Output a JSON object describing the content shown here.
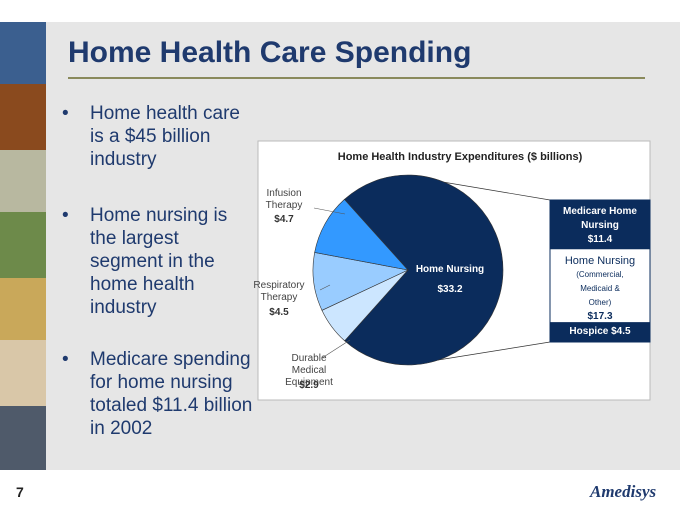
{
  "title": "Home Health Care Spending",
  "bullets": [
    "Home health care is a $45 billion industry",
    "Home nursing is the largest segment in the home health industry",
    "Medicare spending for home nursing totaled $11.4 billion in 2002"
  ],
  "page_number": "7",
  "logo": "Amedisys",
  "chart_data": {
    "type": "pie",
    "title": "Home Health Industry Expenditures ($ billions)",
    "categories": [
      "Home Nursing",
      "Durable Medical Equipment",
      "Respiratory Therapy",
      "Infusion Therapy"
    ],
    "values": [
      33.2,
      2.9,
      4.5,
      4.7
    ],
    "value_labels": [
      "$33.2",
      "$2.9",
      "$4.5",
      "$4.7"
    ],
    "colors": [
      "#0b2c5c",
      "#cce6ff",
      "#99ccff",
      "#3399ff"
    ],
    "breakdown": {
      "categories": [
        "Medicare Home Nursing",
        "Home Nursing",
        "Hospice"
      ],
      "details": [
        null,
        "(Commercial, Medicaid & Other)",
        null
      ],
      "values": [
        11.4,
        17.3,
        4.5
      ],
      "value_labels": [
        "$11.4",
        "$17.3",
        "$4.5"
      ]
    }
  }
}
